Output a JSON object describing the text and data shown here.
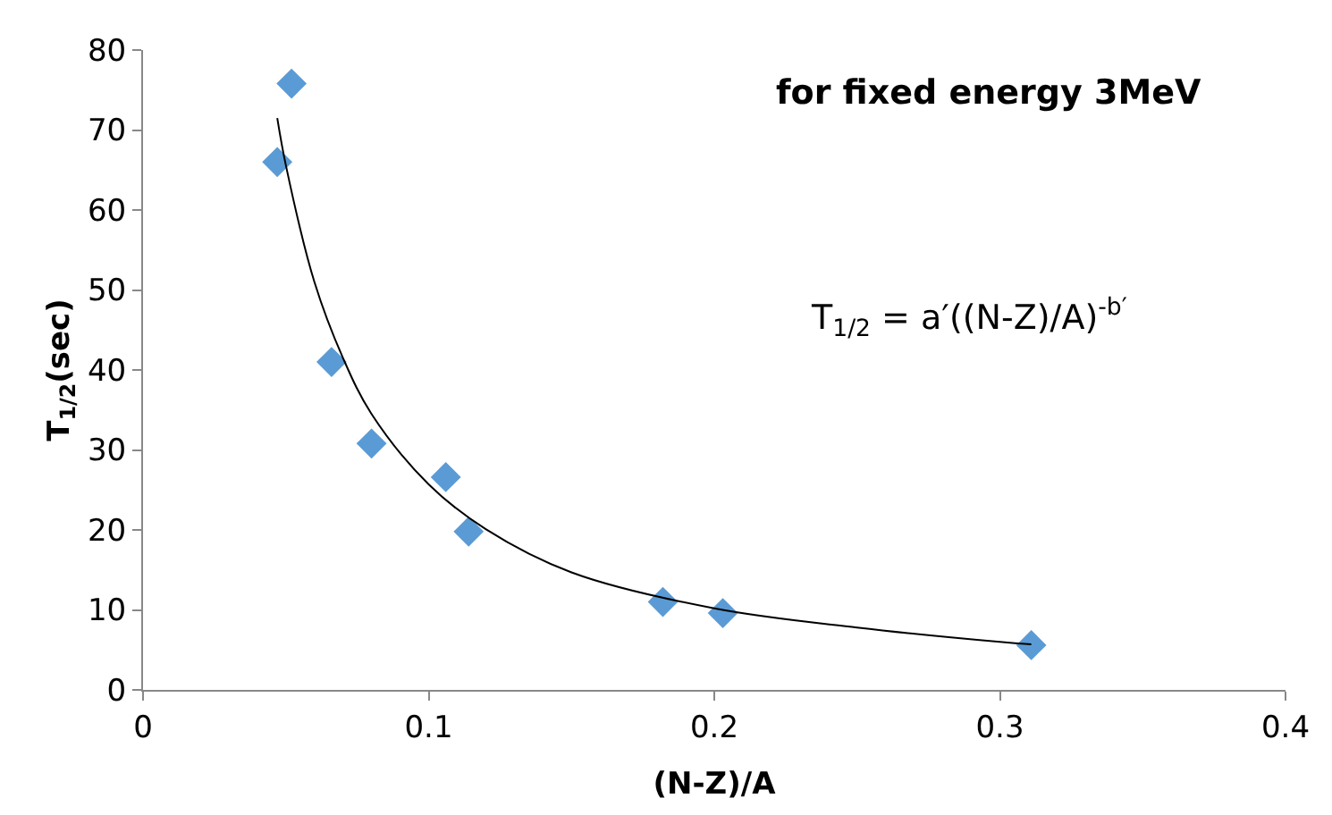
{
  "chart_data": {
    "type": "scatter",
    "xlabel": "(N-Z)/A",
    "ylabel": "T$_{1/2}$(sec)",
    "xlim": [
      0,
      0.4
    ],
    "xticks": [
      0,
      0.1,
      0.2,
      0.3,
      0.4
    ],
    "ylim": [
      0,
      80
    ],
    "yticks": [
      0,
      10,
      20,
      30,
      40,
      50,
      60,
      70,
      80
    ],
    "legend": false,
    "marker": "diamond",
    "annotations": [
      "for fixed energy 3MeV",
      "T$_{1/2}$ = a′((N-Z)/A)$^{-b′}$"
    ],
    "series": [
      {
        "color": "#5b9bd5",
        "x": [
          0.047,
          0.052,
          0.066,
          0.08,
          0.106,
          0.114,
          0.182,
          0.203,
          0.311
        ],
        "values": [
          66,
          75.8,
          41,
          30.8,
          26.6,
          19.8,
          11,
          9.6,
          5.6
        ]
      },
      {
        "type": "line",
        "marker": "none",
        "color": "#000000",
        "x": [
          0.047,
          0.05,
          0.06,
          0.07,
          0.08,
          0.1,
          0.12,
          0.15,
          0.2,
          0.25,
          0.3,
          0.311
        ],
        "values": [
          71.5,
          65.6,
          51,
          41.5,
          34.5,
          25.7,
          20.1,
          14.7,
          10.2,
          7.8,
          6.0,
          5.7
        ]
      }
    ]
  }
}
